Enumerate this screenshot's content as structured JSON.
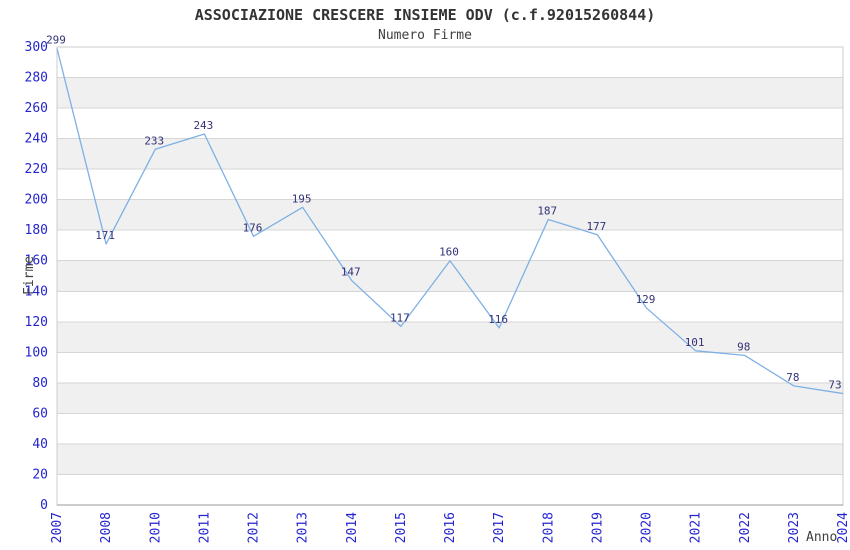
{
  "chart_data": {
    "type": "line",
    "title": "ASSOCIAZIONE CRESCERE INSIEME ODV (c.f.92015260844)",
    "subtitle": "Numero Firme",
    "xlabel": "Anno",
    "ylabel": "Firme",
    "categories": [
      "2007",
      "2008",
      "2010",
      "2011",
      "2012",
      "2013",
      "2014",
      "2015",
      "2016",
      "2017",
      "2018",
      "2019",
      "2020",
      "2021",
      "2022",
      "2023",
      "2024"
    ],
    "values": [
      299,
      171,
      233,
      243,
      176,
      195,
      147,
      117,
      160,
      116,
      187,
      177,
      129,
      101,
      98,
      78,
      73
    ],
    "ylim": [
      0,
      300
    ],
    "y_ticks": [
      0,
      20,
      40,
      60,
      80,
      100,
      120,
      140,
      160,
      180,
      200,
      220,
      240,
      260,
      280,
      300
    ],
    "grid": true,
    "legend": "none",
    "point_labels_shown": true,
    "colors": {
      "line": "#7eb0e6",
      "tick_label": "#2525d0",
      "data_label": "#333377",
      "band": "#f0f0f0",
      "gridline": "#d6d6d6",
      "plot_border": "#cccccc",
      "axis_line": "#999999",
      "title_text": "#333333",
      "axis_title_text": "#404040",
      "background": "#ffffff"
    }
  }
}
